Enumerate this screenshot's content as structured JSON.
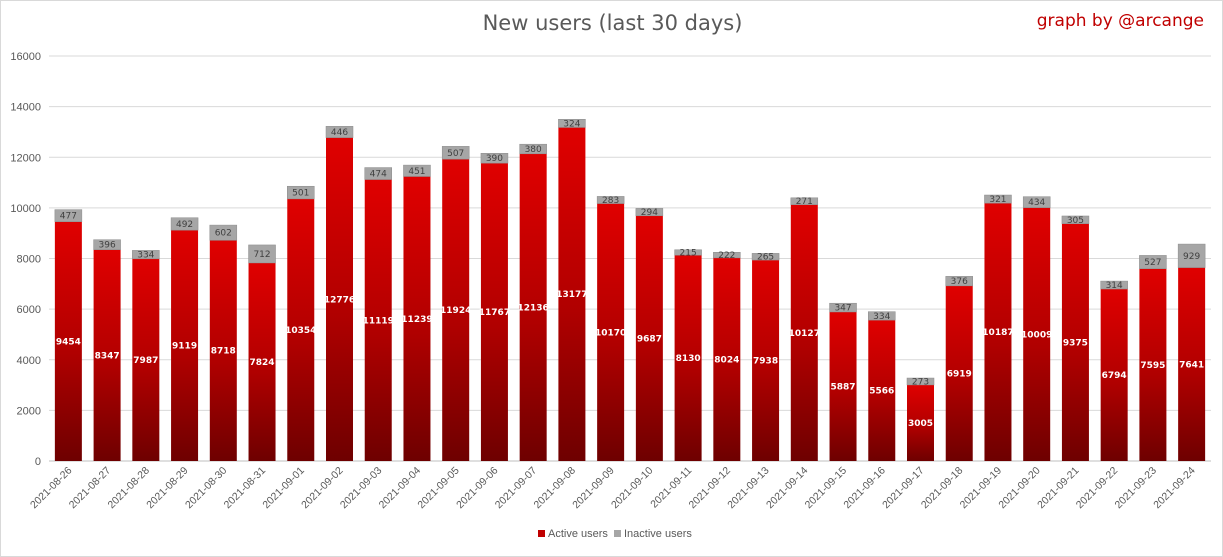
{
  "chart_data": {
    "type": "bar",
    "stacked": true,
    "title": "New users (last 30 days)",
    "credit": "graph by @arcange",
    "xlabel": "",
    "ylabel": "",
    "ylim": [
      0,
      16000
    ],
    "yticks": [
      0,
      2000,
      4000,
      6000,
      8000,
      10000,
      12000,
      14000,
      16000
    ],
    "grid": true,
    "legend_position": "bottom",
    "categories": [
      "2021-08-26",
      "2021-08-27",
      "2021-08-28",
      "2021-08-29",
      "2021-08-30",
      "2021-08-31",
      "2021-09-01",
      "2021-09-02",
      "2021-09-03",
      "2021-09-04",
      "2021-09-05",
      "2021-09-06",
      "2021-09-07",
      "2021-09-08",
      "2021-09-09",
      "2021-09-10",
      "2021-09-11",
      "2021-09-12",
      "2021-09-13",
      "2021-09-14",
      "2021-09-15",
      "2021-09-16",
      "2021-09-17",
      "2021-09-18",
      "2021-09-19",
      "2021-09-20",
      "2021-09-21",
      "2021-09-22",
      "2021-09-23",
      "2021-09-24"
    ],
    "series": [
      {
        "name": "Active users",
        "color": "#c00000",
        "values": [
          9454,
          8347,
          7987,
          9119,
          8718,
          7824,
          10354,
          12776,
          11119,
          11239,
          11924,
          11767,
          12136,
          13177,
          10170,
          9687,
          8130,
          8024,
          7938,
          10127,
          5887,
          5566,
          3005,
          6919,
          10187,
          10009,
          9375,
          6794,
          7595,
          7641
        ]
      },
      {
        "name": "Inactive users",
        "color": "#a6a6a6",
        "values": [
          477,
          396,
          334,
          492,
          602,
          712,
          501,
          446,
          474,
          451,
          507,
          390,
          380,
          324,
          283,
          294,
          215,
          222,
          265,
          271,
          347,
          334,
          273,
          376,
          321,
          434,
          305,
          314,
          527,
          929
        ]
      }
    ]
  }
}
